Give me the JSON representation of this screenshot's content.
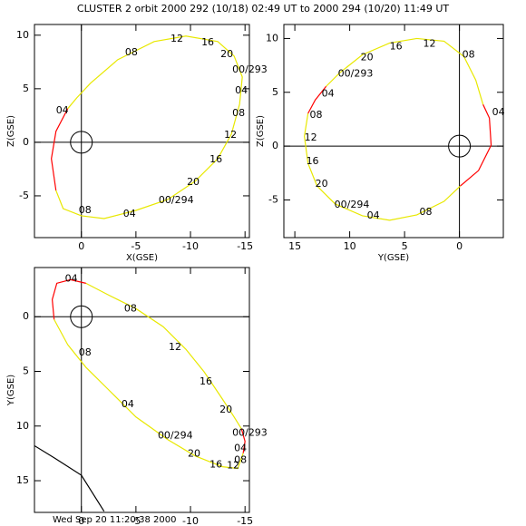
{
  "title": "CLUSTER 2 orbit 2000 292 (10/18) 02:49 UT to 2000 294 (10/20) 11:49 UT",
  "footer": "Wed Sep 20 11:20:38 2000",
  "chart_data": [
    {
      "type": "line",
      "x_label": "X(GSE)",
      "y_label": "Z(GSE)",
      "xlim": [
        4.3,
        -15.4
      ],
      "ylim": [
        -8.9,
        11
      ],
      "xticks": [
        0,
        -5,
        -10,
        -15
      ],
      "yticks": [
        -5,
        0,
        5,
        10
      ],
      "series": [
        {
          "color": "#e8e800",
          "x": [
            2.33,
            1.67,
            0,
            -2.08,
            -5,
            -7.92,
            -10.42,
            -12.5,
            -13.75,
            -14.5,
            -14.75,
            -14,
            -12.5,
            -9.58,
            -6.67,
            -3.33,
            -0.83,
            0.42,
            1.25
          ],
          "values": [
            -4.49,
            -6.19,
            -6.86,
            -7.12,
            -6.36,
            -5.34,
            -3.64,
            -1.53,
            0.76,
            3.56,
            6.1,
            8.05,
            9.41,
            9.92,
            9.41,
            7.71,
            5.51,
            4.15,
            3.14
          ]
        },
        {
          "color": "#ff0000",
          "x": [
            1.25,
            2.33,
            2.75,
            2.33
          ],
          "values": [
            3.14,
            1.02,
            -1.53,
            -4.49
          ]
        }
      ],
      "annotations": [
        {
          "text": "04",
          "x": 2.33,
          "y": 2.97
        },
        {
          "text": "08",
          "x": -4,
          "y": 8.39
        },
        {
          "text": "12",
          "x": -8.17,
          "y": 9.66
        },
        {
          "text": "16",
          "x": -11,
          "y": 9.32
        },
        {
          "text": "20",
          "x": -12.75,
          "y": 8.22
        },
        {
          "text": "00/293",
          "x": -13.83,
          "y": 6.78
        },
        {
          "text": "04",
          "x": -14.08,
          "y": 4.83
        },
        {
          "text": "08",
          "x": -13.83,
          "y": 2.71
        },
        {
          "text": "12",
          "x": -13.08,
          "y": 0.68
        },
        {
          "text": "16",
          "x": -11.75,
          "y": -1.61
        },
        {
          "text": "20",
          "x": -9.67,
          "y": -3.73
        },
        {
          "text": "00/294",
          "x": -7.08,
          "y": -5.42
        },
        {
          "text": "04",
          "x": -3.83,
          "y": -6.69
        },
        {
          "text": "08",
          "x": 0.25,
          "y": -6.36
        }
      ]
    },
    {
      "type": "line",
      "x_label": "Y(GSE)",
      "y_label": "Z(GSE)",
      "xlim": [
        16,
        -4
      ],
      "ylim": [
        -8.5,
        11.3
      ],
      "xticks": [
        15,
        10,
        5,
        0
      ],
      "yticks": [
        -5,
        0,
        5,
        10
      ],
      "series": [
        {
          "color": "#e8e800",
          "x": [
            13.8,
            14.13,
            13.8,
            12.98,
            11.32,
            8.84,
            6.36,
            3.88,
            1.4,
            -0.08
          ],
          "values": [
            3.03,
            0.92,
            -1.6,
            -3.7,
            -5.38,
            -6.47,
            -6.89,
            -6.39,
            -5.13,
            -3.7
          ]
        },
        {
          "color": "#ff0000",
          "x": [
            -0.08,
            -1.74,
            -2.89,
            -2.73,
            -2.15
          ],
          "values": [
            -3.7,
            -2.27,
            0.08,
            2.61,
            3.87
          ]
        },
        {
          "color": "#e8e800",
          "x": [
            -2.15,
            -1.49,
            -0.41,
            1.4,
            3.88,
            6.36,
            8.84,
            10.91,
            12.15
          ],
          "values": [
            3.87,
            6.13,
            8.32,
            9.75,
            10,
            9.58,
            8.49,
            6.81,
            5.55
          ]
        },
        {
          "color": "#ff0000",
          "x": [
            12.15,
            13.14,
            13.8
          ],
          "values": [
            5.55,
            4.29,
            3.03
          ]
        }
      ],
      "annotations": [
        {
          "text": "12",
          "x": 3.31,
          "y": 9.5
        },
        {
          "text": "16",
          "x": 6.36,
          "y": 9.24
        },
        {
          "text": "20",
          "x": 9.01,
          "y": 8.24
        },
        {
          "text": "00/293",
          "x": 11.07,
          "y": 6.72
        },
        {
          "text": "04",
          "x": 12.56,
          "y": 4.87
        },
        {
          "text": "08",
          "x": 13.64,
          "y": 2.86
        },
        {
          "text": "12",
          "x": 14.13,
          "y": 0.76
        },
        {
          "text": "16",
          "x": 13.97,
          "y": -1.43
        },
        {
          "text": "20",
          "x": 13.14,
          "y": -3.53
        },
        {
          "text": "00/294",
          "x": 11.4,
          "y": -5.46
        },
        {
          "text": "04",
          "x": 8.43,
          "y": -6.47
        },
        {
          "text": "08",
          "x": 3.64,
          "y": -6.13
        },
        {
          "text": "08",
          "x": -0.25,
          "y": 8.49
        },
        {
          "text": "04",
          "x": -2.98,
          "y": 3.11
        }
      ]
    },
    {
      "type": "line",
      "x_label": "X(GSE)",
      "y_label": "Y(GSE)",
      "xlim": [
        4.3,
        -15.4
      ],
      "ylim": [
        17.9,
        -4.5
      ],
      "xticks": [
        0,
        -5,
        -10,
        -15
      ],
      "yticks": [
        0,
        5,
        10,
        15
      ],
      "series": [
        {
          "color": "#e8e800",
          "x": [
            2.5,
            1.25,
            -0.42,
            -2.5,
            -5,
            -7.92,
            -10.42,
            -12.92,
            -14.33,
            -14.83
          ],
          "values": [
            0.25,
            2.56,
            4.63,
            6.69,
            9.17,
            11.24,
            12.73,
            13.72,
            13.88,
            12.48
          ]
        },
        {
          "color": "#ff0000",
          "x": [
            -14.83,
            -15,
            -14.67
          ],
          "values": [
            12.48,
            11.4,
            10.25
          ]
        },
        {
          "color": "#e8e800",
          "x": [
            -14.67,
            -14,
            -12.92,
            -11.25,
            -9.58,
            -7.5,
            -5,
            -2.5,
            -0.42
          ],
          "values": [
            10.25,
            9.17,
            7.52,
            5.04,
            2.98,
            0.91,
            -0.74,
            -1.98,
            -3.06
          ]
        },
        {
          "color": "#ff0000",
          "x": [
            -0.42,
            1,
            2.25,
            2.67,
            2.5
          ],
          "values": [
            -3.06,
            -3.39,
            -3.06,
            -1.57,
            0.25
          ]
        },
        {
          "color": "#000000",
          "x": [
            4.3,
            2.5,
            0,
            -2.08
          ],
          "values": [
            11.8,
            12.9,
            14.5,
            17.8
          ]
        }
      ],
      "annotations": [
        {
          "text": "04",
          "x": 1.5,
          "y": -3.47
        },
        {
          "text": "08",
          "x": -3.92,
          "y": -0.74
        },
        {
          "text": "08",
          "x": 0.25,
          "y": 3.31
        },
        {
          "text": "12",
          "x": -8,
          "y": 2.81
        },
        {
          "text": "16",
          "x": -10.83,
          "y": 5.95
        },
        {
          "text": "04",
          "x": -3.67,
          "y": 8.02
        },
        {
          "text": "20",
          "x": -12.67,
          "y": 8.51
        },
        {
          "text": "00/293",
          "x": -13.83,
          "y": 10.66
        },
        {
          "text": "00/294",
          "x": -7,
          "y": 10.91
        },
        {
          "text": "04",
          "x": -14,
          "y": 12.07
        },
        {
          "text": "20",
          "x": -9.75,
          "y": 12.56
        },
        {
          "text": "08",
          "x": -14,
          "y": 13.14
        },
        {
          "text": "16",
          "x": -11.75,
          "y": 13.55
        },
        {
          "text": "12",
          "x": -13.33,
          "y": 13.64
        }
      ]
    }
  ]
}
